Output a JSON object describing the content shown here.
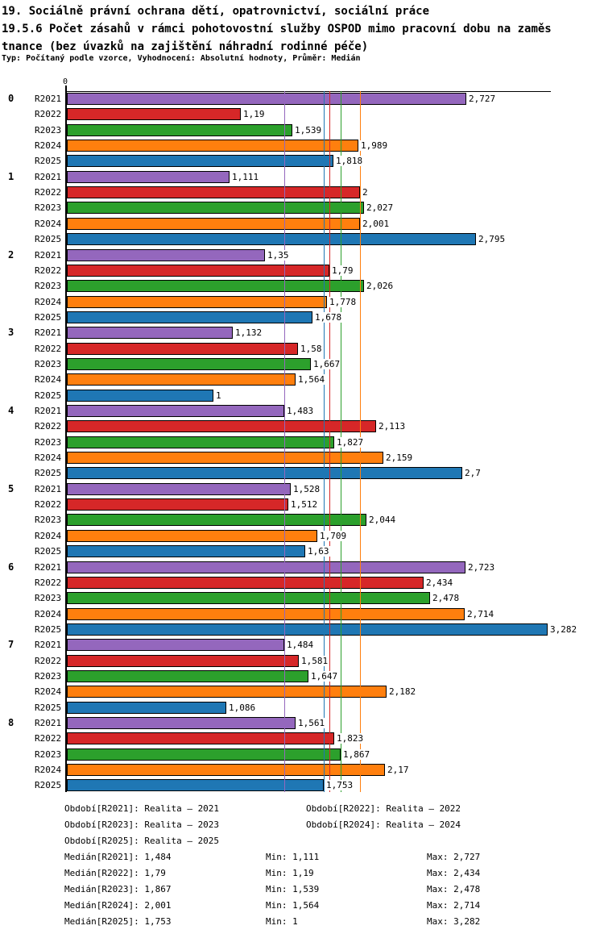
{
  "title": {
    "line1": "19. Sociálně právní ochrana dětí, opatrovnictví, sociální práce",
    "line2": "19.5.6 Počet zásahů v rámci pohotovostní služby OSPOD mimo pracovní dobu na zaměs",
    "line3": "tnance (bez úvazků na zajištění náhradní rodinné péče)",
    "subtitle": "Typ: Počítaný podle vzorce, Vyhodnocení: Absolutní hodnoty, Průměr: Medián"
  },
  "chart_data": {
    "type": "bar",
    "orientation": "horizontal",
    "x_axis": {
      "zero_label": "0",
      "min": 0,
      "max_data_value": 3.282,
      "grid": false
    },
    "series": [
      {
        "name": "R2021",
        "color": "#9467bd",
        "median": 1.484,
        "median_label": "1,484"
      },
      {
        "name": "R2022",
        "color": "#d62728",
        "median": 1.79,
        "median_label": "1,79"
      },
      {
        "name": "R2023",
        "color": "#2ca02c",
        "median": 1.867,
        "median_label": "1,867"
      },
      {
        "name": "R2024",
        "color": "#ff7f0e",
        "median": 2.001,
        "median_label": "2,001"
      },
      {
        "name": "R2025",
        "color": "#1f77b4",
        "median": 1.753,
        "median_label": "1,753"
      }
    ],
    "groups": [
      {
        "label": "0",
        "values": [
          2.727,
          1.19,
          1.539,
          1.989,
          1.818
        ],
        "value_labels": [
          "2,727",
          "1,19",
          "1,539",
          "1,989",
          "1,818"
        ]
      },
      {
        "label": "1",
        "values": [
          1.111,
          2,
          2.027,
          2.001,
          2.795
        ],
        "value_labels": [
          "1,111",
          "2",
          "2,027",
          "2,001",
          "2,795"
        ]
      },
      {
        "label": "2",
        "values": [
          1.35,
          1.79,
          2.026,
          1.778,
          1.678
        ],
        "value_labels": [
          "1,35",
          "1,79",
          "2,026",
          "1,778",
          "1,678"
        ]
      },
      {
        "label": "3",
        "values": [
          1.132,
          1.58,
          1.667,
          1.564,
          1
        ],
        "value_labels": [
          "1,132",
          "1,58",
          "1,667",
          "1,564",
          "1"
        ]
      },
      {
        "label": "4",
        "values": [
          1.483,
          2.113,
          1.827,
          2.159,
          2.7
        ],
        "value_labels": [
          "1,483",
          "2,113",
          "1,827",
          "2,159",
          "2,7"
        ]
      },
      {
        "label": "5",
        "values": [
          1.528,
          1.512,
          2.044,
          1.709,
          1.63
        ],
        "value_labels": [
          "1,528",
          "1,512",
          "2,044",
          "1,709",
          "1,63"
        ]
      },
      {
        "label": "6",
        "values": [
          2.723,
          2.434,
          2.478,
          2.714,
          3.282
        ],
        "value_labels": [
          "2,723",
          "2,434",
          "2,478",
          "2,714",
          "3,282"
        ]
      },
      {
        "label": "7",
        "values": [
          1.484,
          1.581,
          1.647,
          2.182,
          1.086
        ],
        "value_labels": [
          "1,484",
          "1,581",
          "1,647",
          "2,182",
          "1,086"
        ]
      },
      {
        "label": "8",
        "values": [
          1.561,
          1.823,
          1.867,
          2.17,
          1.753
        ],
        "value_labels": [
          "1,561",
          "1,823",
          "1,867",
          "2,17",
          "1,753"
        ]
      }
    ]
  },
  "legend": {
    "periods": [
      "Období[R2021]: Realita – 2021",
      "Období[R2022]: Realita – 2022",
      "Období[R2023]: Realita – 2023",
      "Období[R2024]: Realita – 2024",
      "Období[R2025]: Realita – 2025"
    ],
    "stats": [
      {
        "median": "Medián[R2021]: 1,484",
        "min": "Min: 1,111",
        "max": "Max: 2,727"
      },
      {
        "median": "Medián[R2022]: 1,79",
        "min": "Min: 1,19",
        "max": "Max: 2,434"
      },
      {
        "median": "Medián[R2023]: 1,867",
        "min": "Min: 1,539",
        "max": "Max: 2,478"
      },
      {
        "median": "Medián[R2024]: 2,001",
        "min": "Min: 1,564",
        "max": "Max: 2,714"
      },
      {
        "median": "Medián[R2025]: 1,753",
        "min": "Min: 1",
        "max": "Max: 3,282"
      }
    ]
  }
}
